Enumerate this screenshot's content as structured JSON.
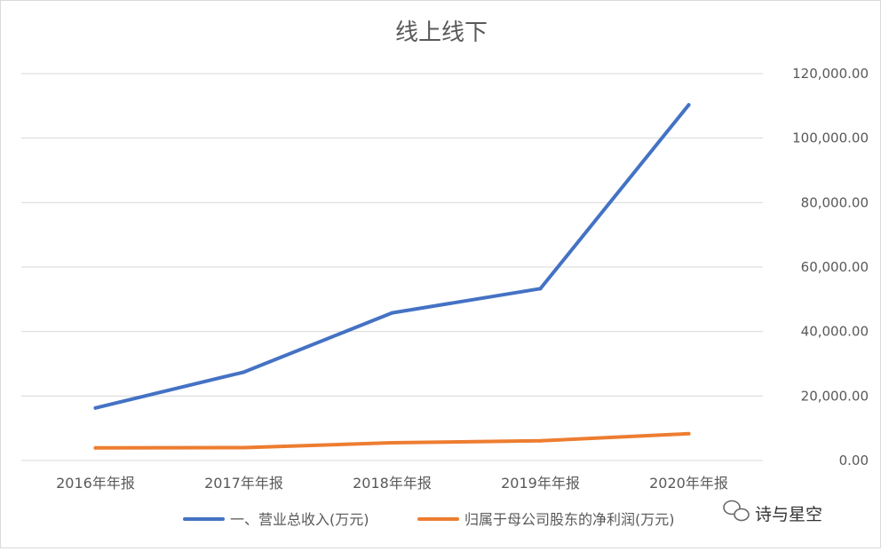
{
  "chart_data": {
    "type": "line",
    "title": "线上线下",
    "categories": [
      "2016年年报",
      "2017年年报",
      "2018年年报",
      "2019年年报",
      "2020年年报"
    ],
    "series": [
      {
        "name": "一、营业总收入(万元)",
        "color": "#4472c4",
        "values": [
          16300,
          27400,
          45800,
          53300,
          110300
        ]
      },
      {
        "name": "归属于母公司股东的净利润(万元)",
        "color": "#ed7d31",
        "values": [
          3900,
          4000,
          5500,
          6100,
          8300
        ]
      }
    ],
    "ylim": [
      0,
      120000
    ],
    "yticks": [
      "0.00",
      "20,000.00",
      "40,000.00",
      "60,000.00",
      "80,000.00",
      "100,000.00",
      "120,000.00"
    ],
    "y_axis_side": "right",
    "grid": true,
    "legend": "bottom"
  },
  "watermark": {
    "text": "诗与星空",
    "icon": "wechat-icon"
  }
}
